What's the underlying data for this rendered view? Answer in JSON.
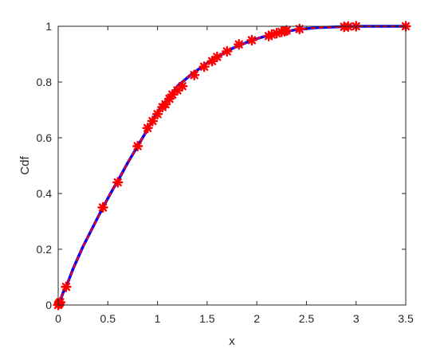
{
  "chart_data": {
    "type": "line",
    "title": "",
    "xlabel": "x",
    "ylabel": "Cdf",
    "xlim": [
      0,
      3.5
    ],
    "ylim": [
      0,
      1
    ],
    "grid": false,
    "legend": "none",
    "x_ticks": [
      "0",
      "0.5",
      "1",
      "1.5",
      "2",
      "2.5",
      "3",
      "3.5"
    ],
    "y_ticks": [
      "0",
      "0.2",
      "0.4",
      "0.6",
      "0.8",
      "1"
    ],
    "series": [
      {
        "style": "line",
        "color": "#0000ff",
        "x": [
          0,
          0.02,
          0.05,
          0.08,
          0.15,
          0.25,
          0.35,
          0.45,
          0.55,
          0.6,
          0.7,
          0.8,
          0.9,
          0.95,
          1.0,
          1.05,
          1.1,
          1.15,
          1.2,
          1.25,
          1.35,
          1.45,
          1.55,
          1.65,
          1.75,
          1.85,
          1.95,
          2.1,
          2.25,
          2.4,
          2.6,
          2.8,
          3.0,
          3.25,
          3.5
        ],
        "values": [
          0.0,
          0.015,
          0.045,
          0.065,
          0.13,
          0.21,
          0.28,
          0.35,
          0.415,
          0.445,
          0.51,
          0.57,
          0.63,
          0.665,
          0.69,
          0.715,
          0.74,
          0.76,
          0.785,
          0.8,
          0.83,
          0.855,
          0.88,
          0.9,
          0.92,
          0.935,
          0.95,
          0.966,
          0.978,
          0.988,
          0.995,
          0.998,
          1.0,
          1.0,
          1.0
        ]
      },
      {
        "style": "dashed",
        "color": "#ff0000",
        "x": [
          0,
          0.02,
          0.05,
          0.08,
          0.15,
          0.25,
          0.35,
          0.45,
          0.55,
          0.6,
          0.7,
          0.8,
          0.9,
          0.95,
          1.0,
          1.05,
          1.1,
          1.15,
          1.2,
          1.25,
          1.35,
          1.45,
          1.55,
          1.65,
          1.75,
          1.85,
          1.95,
          2.1,
          2.25,
          2.4,
          2.6,
          2.8,
          3.0,
          3.25,
          3.5
        ],
        "values": [
          0.0,
          0.015,
          0.045,
          0.065,
          0.13,
          0.21,
          0.28,
          0.35,
          0.415,
          0.445,
          0.51,
          0.57,
          0.63,
          0.665,
          0.69,
          0.715,
          0.74,
          0.76,
          0.785,
          0.8,
          0.83,
          0.855,
          0.88,
          0.9,
          0.92,
          0.935,
          0.95,
          0.966,
          0.978,
          0.988,
          0.995,
          0.998,
          1.0,
          1.0,
          1.0
        ]
      },
      {
        "style": "markers",
        "marker": "asterisk",
        "color": "#ff0000",
        "x": [
          0.0,
          0.01,
          0.02,
          0.08,
          0.45,
          0.6,
          0.8,
          0.9,
          0.95,
          1.0,
          1.05,
          1.08,
          1.12,
          1.15,
          1.2,
          1.25,
          1.37,
          1.47,
          1.55,
          1.6,
          1.7,
          1.82,
          1.95,
          2.12,
          2.15,
          2.2,
          2.25,
          2.28,
          2.3,
          2.43,
          2.88,
          2.92,
          3.0,
          3.5
        ],
        "values": [
          0.0,
          0.005,
          0.01,
          0.065,
          0.35,
          0.44,
          0.57,
          0.635,
          0.66,
          0.685,
          0.71,
          0.72,
          0.74,
          0.755,
          0.77,
          0.785,
          0.825,
          0.855,
          0.875,
          0.89,
          0.91,
          0.935,
          0.95,
          0.965,
          0.97,
          0.975,
          0.98,
          0.982,
          0.985,
          0.99,
          0.998,
          0.999,
          1.0,
          1.0
        ]
      }
    ]
  }
}
